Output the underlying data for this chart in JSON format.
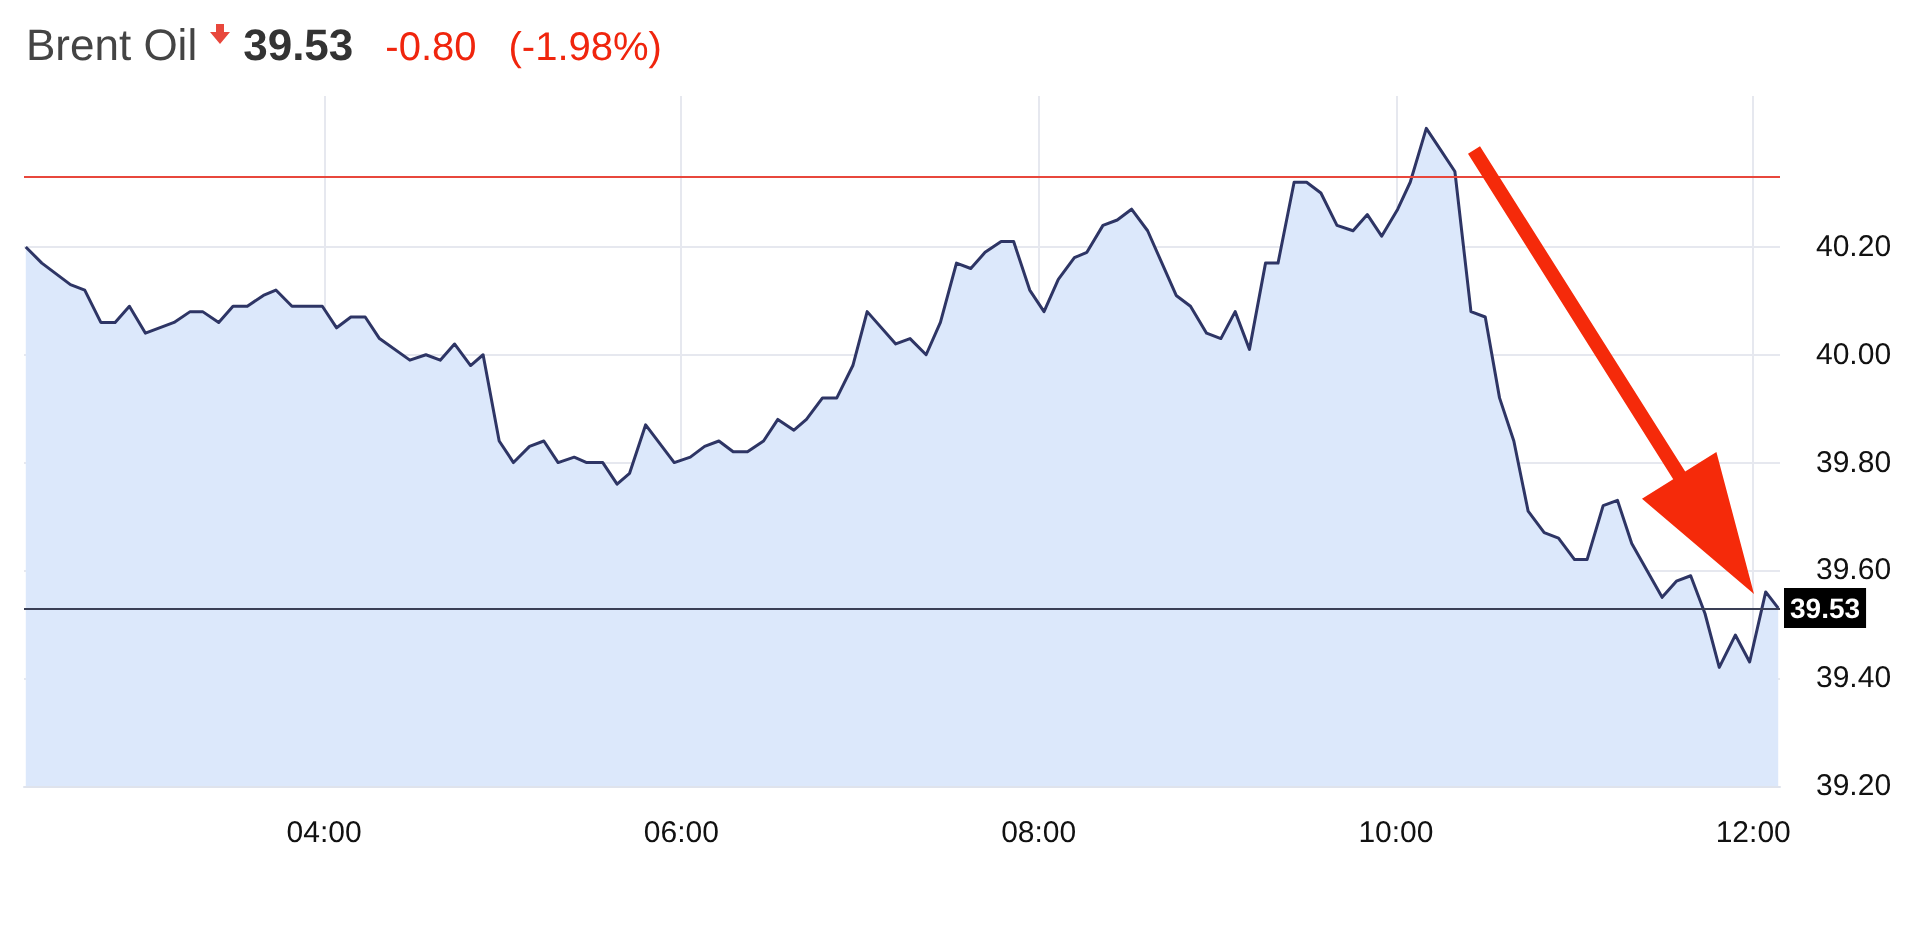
{
  "chart_data": {
    "type": "area",
    "title": "Brent Oil",
    "subtitle": "39.53",
    "annotations": [
      "-0.80",
      "(-1.98%)"
    ],
    "x": [
      2.33,
      2.42,
      2.58,
      2.66,
      2.75,
      2.83,
      2.91,
      3.0,
      3.16,
      3.25,
      3.32,
      3.41,
      3.49,
      3.57,
      3.66,
      3.73,
      3.82,
      3.99,
      4.07,
      4.15,
      4.23,
      4.31,
      4.48,
      4.57,
      4.65,
      4.73,
      4.82,
      4.89,
      4.98,
      5.06,
      5.15,
      5.23,
      5.31,
      5.4,
      5.47,
      5.56,
      5.64,
      5.71,
      5.8,
      5.96,
      6.05,
      6.13,
      6.21,
      6.29,
      6.37,
      6.46,
      6.54,
      6.63,
      6.7,
      6.79,
      6.87,
      6.96,
      7.04,
      7.2,
      7.28,
      7.37,
      7.45,
      7.54,
      7.62,
      7.7,
      7.79,
      7.86,
      7.95,
      8.03,
      8.11,
      8.2,
      8.27,
      8.36,
      8.44,
      8.52,
      8.61,
      8.77,
      8.85,
      8.94,
      9.02,
      9.1,
      9.18,
      9.27,
      9.34,
      9.43,
      9.5,
      9.58,
      9.67,
      9.76,
      9.84,
      9.92,
      10.01,
      10.08,
      10.17,
      10.25,
      10.33,
      10.42,
      10.5,
      10.58,
      10.66,
      10.74,
      10.83,
      10.91,
      11.0,
      11.07,
      11.16,
      11.24,
      11.32,
      11.49,
      11.57,
      11.65,
      11.73,
      11.81,
      11.9,
      11.98,
      12.07,
      12.14
    ],
    "series": [
      {
        "color": "#2e3565",
        "values": [
          40.2,
          40.17,
          40.13,
          40.12,
          40.06,
          40.06,
          40.09,
          40.04,
          40.06,
          40.08,
          40.08,
          40.06,
          40.09,
          40.09,
          40.11,
          40.12,
          40.09,
          40.09,
          40.05,
          40.07,
          40.07,
          40.03,
          39.99,
          40.0,
          39.99,
          40.02,
          39.98,
          40.0,
          39.84,
          39.8,
          39.83,
          39.84,
          39.8,
          39.81,
          39.8,
          39.8,
          39.76,
          39.78,
          39.87,
          39.8,
          39.81,
          39.83,
          39.84,
          39.82,
          39.82,
          39.84,
          39.88,
          39.86,
          39.88,
          39.92,
          39.92,
          39.98,
          40.08,
          40.02,
          40.03,
          40.0,
          40.06,
          40.17,
          40.16,
          40.19,
          40.21,
          40.21,
          40.12,
          40.08,
          40.14,
          40.18,
          40.19,
          40.24,
          40.25,
          40.27,
          40.23,
          40.11,
          40.09,
          40.04,
          40.03,
          40.08,
          40.01,
          40.17,
          40.17,
          40.32,
          40.32,
          40.3,
          40.24,
          40.23,
          40.26,
          40.22,
          40.27,
          40.32,
          40.42,
          40.38,
          40.34,
          40.08,
          40.07,
          39.92,
          39.84,
          39.71,
          39.67,
          39.66,
          39.62,
          39.62,
          39.72,
          39.73,
          39.65,
          39.55,
          39.58,
          39.59,
          39.52,
          39.42,
          39.48,
          39.43,
          39.56,
          39.53
        ]
      }
    ],
    "xlim": [
      2.32,
      12.15
    ],
    "xticks": [
      {
        "value": 4,
        "label": "04:00"
      },
      {
        "value": 6,
        "label": "06:00"
      },
      {
        "value": 8,
        "label": "08:00"
      },
      {
        "value": 10,
        "label": "10:00"
      },
      {
        "value": 12,
        "label": "12:00"
      }
    ],
    "ylim": [
      39.2,
      40.48
    ],
    "yticks": [
      {
        "value": 39.2,
        "label": "39.20"
      },
      {
        "value": 39.4,
        "label": "39.40"
      },
      {
        "value": 39.6,
        "label": "39.60"
      },
      {
        "value": 39.8,
        "label": "39.80"
      },
      {
        "value": 40,
        "label": "40.00"
      },
      {
        "value": 40.2,
        "label": "40.20"
      }
    ],
    "ref_lines": [
      {
        "axis": "y",
        "value": 40.33,
        "color": "#e8473c"
      },
      {
        "axis": "y",
        "value": 39.53,
        "label": "39.53",
        "color": "#3a3f55"
      }
    ],
    "grid": true,
    "marker": "none",
    "line_style": "solid"
  }
}
